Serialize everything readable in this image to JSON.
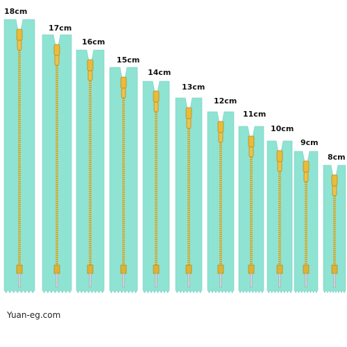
{
  "zippers": [
    {
      "label": "18cm"
    },
    {
      "label": "17cm"
    },
    {
      "label": "16cm"
    },
    {
      "label": "15cm"
    },
    {
      "label": "14cm"
    },
    {
      "label": "13cm"
    },
    {
      "label": "12cm"
    },
    {
      "label": "11cm"
    },
    {
      "label": "10cm"
    },
    {
      "label": "9cm"
    },
    {
      "label": "8cm"
    }
  ],
  "watermark": "Yuan-eg.com"
}
